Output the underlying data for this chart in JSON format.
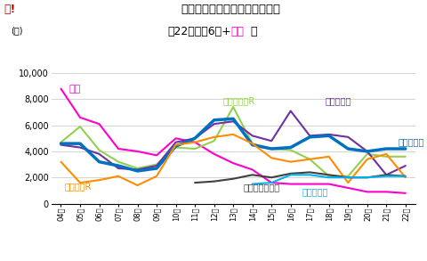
{
  "title": "全国の事業主別発売戸数の推移",
  "subtitle_prefix": "（22年上位6社+",
  "subtitle_suffix": "大京",
  "subtitle_end": "）",
  "years": [
    "04年",
    "05年",
    "06年",
    "07年",
    "08年",
    "09年",
    "10年",
    "11年",
    "12年",
    "13年",
    "14年",
    "15年",
    "16年",
    "17年",
    "18年",
    "19年",
    "20年",
    "21年",
    "22年"
  ],
  "ylim": [
    0,
    10000
  ],
  "yticks": [
    0,
    2000,
    4000,
    6000,
    8000,
    10000
  ],
  "series": {
    "大京": {
      "color": "#ff00cc",
      "linewidth": 1.5,
      "data": [
        8800,
        6600,
        6100,
        4200,
        4000,
        3700,
        5000,
        4700,
        3800,
        3100,
        2600,
        1600,
        1500,
        1500,
        1500,
        1200,
        900,
        900,
        800
      ]
    },
    "三井不動産R": {
      "color": "#92d050",
      "linewidth": 1.5,
      "data": [
        4700,
        5900,
        4100,
        3200,
        2700,
        3000,
        4300,
        4200,
        4800,
        7400,
        4600,
        4200,
        4100,
        3400,
        2100,
        2100,
        3800,
        3600,
        3600
      ]
    },
    "住友不動産": {
      "color": "#7030a0",
      "linewidth": 1.5,
      "data": [
        4500,
        4300,
        3800,
        2700,
        2600,
        2900,
        4700,
        5000,
        6100,
        6300,
        5200,
        4800,
        7100,
        5200,
        5300,
        5100,
        4000,
        2200,
        2900
      ]
    },
    "野村不動産": {
      "color": "#0070c0",
      "linewidth": 2.5,
      "data": [
        4600,
        4600,
        3200,
        2900,
        2500,
        2700,
        4400,
        5000,
        6400,
        6500,
        4500,
        4200,
        4300,
        5100,
        5200,
        4200,
        4000,
        4200,
        4200
      ]
    },
    "三菱地所R": {
      "color": "#ff8c00",
      "linewidth": 1.5,
      "data": [
        3200,
        1600,
        1800,
        2100,
        1400,
        2100,
        4500,
        4700,
        5100,
        5300,
        4600,
        3500,
        3200,
        3400,
        3600,
        1600,
        3400,
        3800,
        2000
      ]
    },
    "プレサンコーポ": {
      "color": "#404040",
      "linewidth": 1.5,
      "data": [
        null,
        null,
        null,
        null,
        null,
        null,
        null,
        1600,
        1700,
        1900,
        2200,
        2000,
        2300,
        2400,
        2200,
        2000,
        2000,
        2200,
        2100
      ]
    },
    "エスリード": {
      "color": "#00b0f0",
      "linewidth": 1.5,
      "data": [
        null,
        null,
        null,
        null,
        null,
        null,
        null,
        null,
        null,
        null,
        1500,
        1600,
        2200,
        2200,
        2000,
        2000,
        2000,
        2100,
        2100
      ]
    }
  },
  "annotations": {
    "大京": {
      "xi": 0.4,
      "y": 8750,
      "ha": "left",
      "va": "center",
      "color": "#ff00cc",
      "fontsize": 8
    },
    "三井不動産R": {
      "xi": 9.3,
      "y": 7900,
      "ha": "center",
      "va": "center",
      "color": "#92d050",
      "fontsize": 7
    },
    "住友不動産": {
      "xi": 14.5,
      "y": 7900,
      "ha": "center",
      "va": "center",
      "color": "#7030a0",
      "fontsize": 7
    },
    "野村不動産": {
      "xi": 17.6,
      "y": 4750,
      "ha": "left",
      "va": "center",
      "color": "#0070c0",
      "fontsize": 7
    },
    "三菱地所R": {
      "xi": 0.2,
      "y": 1350,
      "ha": "left",
      "va": "center",
      "color": "#ff8c00",
      "fontsize": 7
    },
    "プレサンコーポ": {
      "xi": 10.5,
      "y": 1250,
      "ha": "center",
      "va": "center",
      "color": "#404040",
      "fontsize": 7
    },
    "エスリード": {
      "xi": 13.3,
      "y": 900,
      "ha": "center",
      "va": "center",
      "color": "#00b0f0",
      "fontsize": 7
    }
  },
  "logo_text": "マ!",
  "logo_color": "#cc0000",
  "unit_text": "(戸)",
  "background_color": "#ffffff",
  "grid_color": "#cccccc"
}
